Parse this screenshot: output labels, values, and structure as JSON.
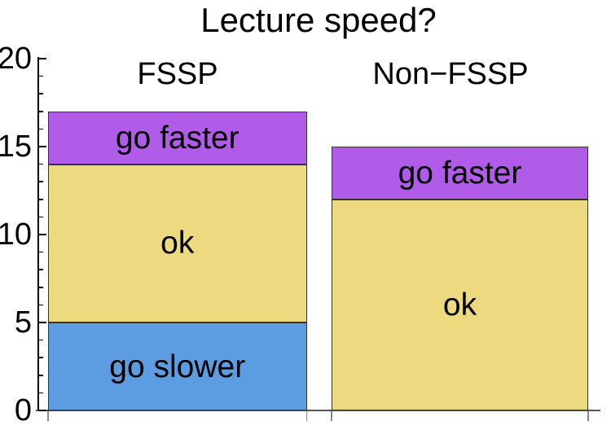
{
  "chart_data": {
    "type": "bar",
    "variant": "stacked-vertical",
    "title": "Lecture speed?",
    "categories": [
      "FSSP",
      "Non−FSSP"
    ],
    "series": [
      {
        "name": "go slower",
        "color": "#5C9DE1",
        "values": [
          5,
          0
        ]
      },
      {
        "name": "ok",
        "color": "#EDD980",
        "values": [
          9,
          12
        ]
      },
      {
        "name": "go faster",
        "color": "#B15CE8",
        "values": [
          3,
          3
        ]
      }
    ],
    "stack_totals": [
      17,
      15
    ],
    "ylim": [
      0,
      20
    ],
    "yticks": [
      0,
      5,
      10,
      15,
      20
    ],
    "minor_tick_step": 1,
    "xlabel": "",
    "ylabel": "",
    "grid": false,
    "legend": "none (labels inside segments)",
    "colors": {
      "background": "#FFFFFF",
      "axis": "#000000",
      "bar_edge": "#333333",
      "text": "#000000"
    }
  }
}
